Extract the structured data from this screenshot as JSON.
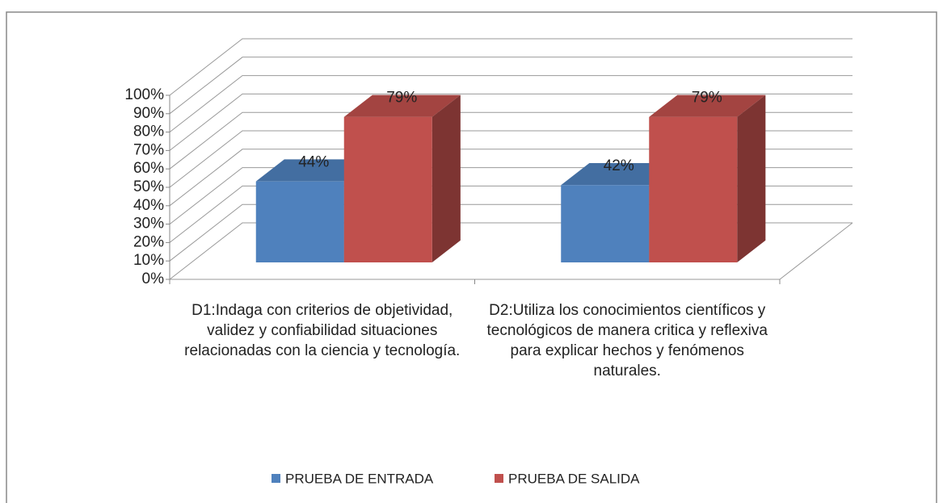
{
  "chart_data": {
    "type": "bar3d",
    "categories": [
      "D1:Indaga con criterios de objetividad, validez y confiabilidad situaciones  relacionadas con la ciencia y tecnología.",
      "D2:Utiliza los conocimientos científicos y tecnológicos  de manera critica y reflexiva para explicar  hechos y fenómenos naturales."
    ],
    "series": [
      {
        "name": "PRUEBA DE ENTRADA",
        "color": "#4f81bd",
        "values": [
          44,
          42
        ],
        "value_labels": [
          "44%",
          "42%"
        ]
      },
      {
        "name": "PRUEBA DE SALIDA",
        "color": "#c0504d",
        "values": [
          79,
          79
        ],
        "value_labels": [
          "79%",
          "79%"
        ]
      }
    ],
    "ylim": [
      0,
      100
    ],
    "yticks": [
      {
        "value": 0,
        "label": "0%"
      },
      {
        "value": 10,
        "label": "10%"
      },
      {
        "value": 20,
        "label": "20%"
      },
      {
        "value": 30,
        "label": "30%"
      },
      {
        "value": 40,
        "label": "40%"
      },
      {
        "value": 50,
        "label": "50%"
      },
      {
        "value": 60,
        "label": "60%"
      },
      {
        "value": 70,
        "label": "70%"
      },
      {
        "value": 80,
        "label": "80%"
      },
      {
        "value": 90,
        "label": "90%"
      },
      {
        "value": 100,
        "label": "100%"
      }
    ],
    "grid": true,
    "legend": "bottom"
  }
}
